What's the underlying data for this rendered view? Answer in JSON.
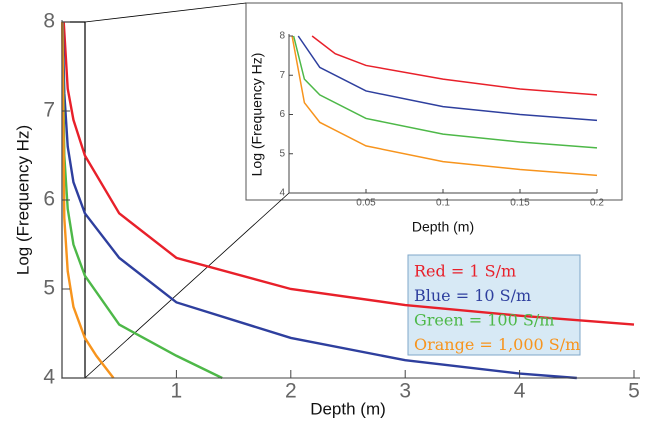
{
  "chart_data": [
    {
      "type": "line",
      "xlabel": "Depth (m)",
      "ylabel": "Log (Frequency Hz)",
      "xlim": [
        0,
        5
      ],
      "ylim": [
        4,
        8
      ],
      "xticks": [
        1,
        2,
        3,
        4,
        5
      ],
      "yticks": [
        4,
        5,
        6,
        7,
        8
      ],
      "legend": "lower right",
      "series": [
        {
          "name": "Red = 1 S/m",
          "color": "#e8202a",
          "x": [
            0.015,
            0.05,
            0.1,
            0.2,
            0.5,
            1,
            2,
            3,
            4,
            5
          ],
          "values": [
            8,
            7.25,
            6.9,
            6.5,
            5.85,
            5.35,
            5.0,
            4.82,
            4.7,
            4.6
          ]
        },
        {
          "name": "Blue = 10 S/m",
          "color": "#2e3f9e",
          "x": [
            0.006,
            0.02,
            0.05,
            0.1,
            0.2,
            0.5,
            1,
            2,
            3,
            4,
            4.5
          ],
          "values": [
            8,
            7.2,
            6.6,
            6.2,
            5.85,
            5.35,
            4.85,
            4.45,
            4.2,
            4.05,
            4.0
          ]
        },
        {
          "name": "Green = 100 S/m",
          "color": "#4db848",
          "x": [
            0.003,
            0.02,
            0.05,
            0.1,
            0.2,
            0.5,
            1,
            1.4
          ],
          "values": [
            8,
            6.5,
            5.9,
            5.5,
            5.15,
            4.6,
            4.25,
            4.0
          ]
        },
        {
          "name": "Orange = 1,000 S/m",
          "color": "#f7941d",
          "x": [
            0.002,
            0.02,
            0.05,
            0.1,
            0.2,
            0.3,
            0.45
          ],
          "values": [
            8,
            5.8,
            5.2,
            4.8,
            4.45,
            4.25,
            4.0
          ]
        }
      ]
    },
    {
      "type": "line",
      "xlabel": "Depth (m)",
      "ylabel": "Log (Frequency Hz)",
      "xlim": [
        0,
        0.2
      ],
      "ylim": [
        4,
        8
      ],
      "xticks": [
        0.05,
        0.1,
        0.15,
        0.2
      ],
      "yticks": [
        4,
        5,
        6,
        7,
        8
      ],
      "series": [
        {
          "color": "#e8202a",
          "x": [
            0.015,
            0.03,
            0.05,
            0.1,
            0.15,
            0.2
          ],
          "values": [
            8,
            7.55,
            7.25,
            6.9,
            6.65,
            6.5
          ]
        },
        {
          "color": "#2e3f9e",
          "x": [
            0.006,
            0.02,
            0.05,
            0.1,
            0.15,
            0.2
          ],
          "values": [
            8,
            7.2,
            6.6,
            6.2,
            6.0,
            5.85
          ]
        },
        {
          "color": "#4db848",
          "x": [
            0.003,
            0.01,
            0.02,
            0.05,
            0.1,
            0.15,
            0.2
          ],
          "values": [
            8,
            6.9,
            6.5,
            5.9,
            5.5,
            5.3,
            5.15
          ]
        },
        {
          "color": "#f7941d",
          "x": [
            0.002,
            0.01,
            0.02,
            0.05,
            0.1,
            0.15,
            0.2
          ],
          "values": [
            8,
            6.3,
            5.8,
            5.2,
            4.8,
            4.6,
            4.45
          ]
        }
      ]
    }
  ]
}
